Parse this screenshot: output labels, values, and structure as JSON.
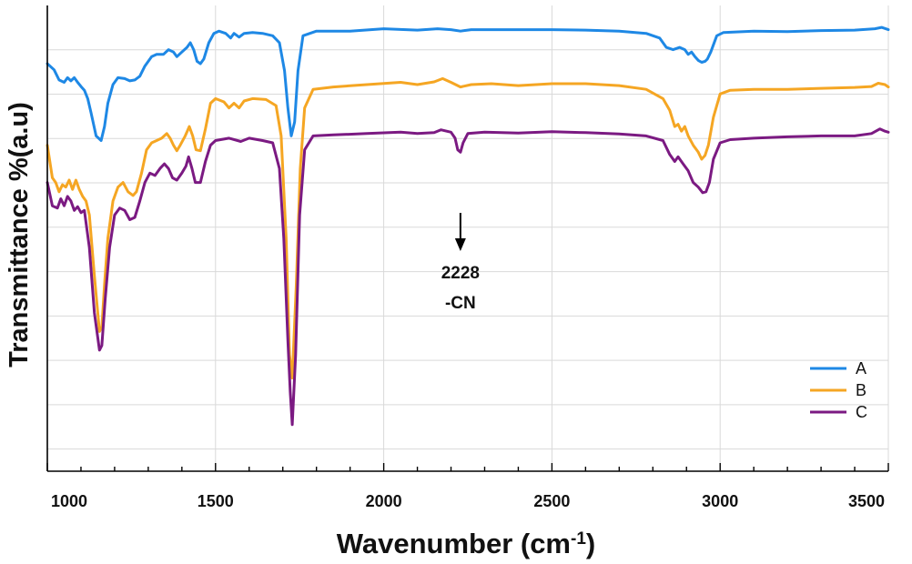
{
  "chart_data": {
    "type": "line",
    "xlabel": "Wavenumber (cm",
    "xlabel_sup": "-1",
    "xlabel_end": ")",
    "ylabel": "Transmittance %(a.u)",
    "xlim": [
      1000,
      3500
    ],
    "x_ticks": [
      "1000",
      "1500",
      "2000",
      "2500",
      "3000",
      "3500"
    ],
    "grid": true,
    "legend_position": "bottom-right",
    "annotation": {
      "x": 2228,
      "line1": "2228",
      "line2": "-CN"
    },
    "series": [
      {
        "name": "A",
        "color": "#1E88E5",
        "points": [
          [
            1000,
            0.875
          ],
          [
            1020,
            0.862
          ],
          [
            1035,
            0.84
          ],
          [
            1050,
            0.835
          ],
          [
            1060,
            0.845
          ],
          [
            1070,
            0.838
          ],
          [
            1080,
            0.845
          ],
          [
            1090,
            0.835
          ],
          [
            1100,
            0.826
          ],
          [
            1110,
            0.818
          ],
          [
            1120,
            0.8
          ],
          [
            1130,
            0.77
          ],
          [
            1145,
            0.72
          ],
          [
            1160,
            0.71
          ],
          [
            1170,
            0.74
          ],
          [
            1180,
            0.79
          ],
          [
            1195,
            0.83
          ],
          [
            1210,
            0.845
          ],
          [
            1230,
            0.843
          ],
          [
            1245,
            0.838
          ],
          [
            1260,
            0.84
          ],
          [
            1275,
            0.848
          ],
          [
            1290,
            0.87
          ],
          [
            1310,
            0.89
          ],
          [
            1325,
            0.895
          ],
          [
            1345,
            0.895
          ],
          [
            1360,
            0.905
          ],
          [
            1375,
            0.9
          ],
          [
            1385,
            0.89
          ],
          [
            1400,
            0.9
          ],
          [
            1415,
            0.91
          ],
          [
            1425,
            0.92
          ],
          [
            1435,
            0.905
          ],
          [
            1445,
            0.88
          ],
          [
            1455,
            0.875
          ],
          [
            1465,
            0.885
          ],
          [
            1480,
            0.92
          ],
          [
            1495,
            0.94
          ],
          [
            1510,
            0.945
          ],
          [
            1530,
            0.94
          ],
          [
            1545,
            0.93
          ],
          [
            1555,
            0.94
          ],
          [
            1570,
            0.932
          ],
          [
            1585,
            0.94
          ],
          [
            1610,
            0.942
          ],
          [
            1640,
            0.94
          ],
          [
            1670,
            0.935
          ],
          [
            1690,
            0.92
          ],
          [
            1705,
            0.86
          ],
          [
            1715,
            0.78
          ],
          [
            1725,
            0.72
          ],
          [
            1735,
            0.75
          ],
          [
            1745,
            0.86
          ],
          [
            1760,
            0.935
          ],
          [
            1800,
            0.945
          ],
          [
            1900,
            0.945
          ],
          [
            2000,
            0.95
          ],
          [
            2100,
            0.947
          ],
          [
            2160,
            0.95
          ],
          [
            2200,
            0.948
          ],
          [
            2228,
            0.945
          ],
          [
            2260,
            0.948
          ],
          [
            2400,
            0.948
          ],
          [
            2500,
            0.948
          ],
          [
            2600,
            0.947
          ],
          [
            2700,
            0.945
          ],
          [
            2780,
            0.94
          ],
          [
            2820,
            0.93
          ],
          [
            2840,
            0.91
          ],
          [
            2860,
            0.905
          ],
          [
            2880,
            0.91
          ],
          [
            2895,
            0.905
          ],
          [
            2905,
            0.895
          ],
          [
            2915,
            0.9
          ],
          [
            2925,
            0.89
          ],
          [
            2935,
            0.882
          ],
          [
            2945,
            0.878
          ],
          [
            2955,
            0.88
          ],
          [
            2962,
            0.885
          ],
          [
            2972,
            0.9
          ],
          [
            2990,
            0.935
          ],
          [
            3010,
            0.942
          ],
          [
            3100,
            0.945
          ],
          [
            3200,
            0.944
          ],
          [
            3300,
            0.946
          ],
          [
            3400,
            0.947
          ],
          [
            3460,
            0.95
          ],
          [
            3480,
            0.953
          ],
          [
            3500,
            0.948
          ]
        ]
      },
      {
        "name": "B",
        "color": "#F5A623",
        "points": [
          [
            1000,
            0.7
          ],
          [
            1015,
            0.63
          ],
          [
            1025,
            0.62
          ],
          [
            1035,
            0.6
          ],
          [
            1045,
            0.615
          ],
          [
            1055,
            0.61
          ],
          [
            1065,
            0.625
          ],
          [
            1075,
            0.605
          ],
          [
            1085,
            0.625
          ],
          [
            1095,
            0.605
          ],
          [
            1105,
            0.59
          ],
          [
            1115,
            0.58
          ],
          [
            1125,
            0.55
          ],
          [
            1140,
            0.42
          ],
          [
            1155,
            0.3
          ],
          [
            1162,
            0.31
          ],
          [
            1170,
            0.4
          ],
          [
            1180,
            0.5
          ],
          [
            1195,
            0.58
          ],
          [
            1210,
            0.61
          ],
          [
            1225,
            0.62
          ],
          [
            1240,
            0.6
          ],
          [
            1255,
            0.592
          ],
          [
            1265,
            0.6
          ],
          [
            1280,
            0.64
          ],
          [
            1295,
            0.69
          ],
          [
            1310,
            0.705
          ],
          [
            1325,
            0.71
          ],
          [
            1340,
            0.715
          ],
          [
            1355,
            0.725
          ],
          [
            1365,
            0.715
          ],
          [
            1375,
            0.7
          ],
          [
            1385,
            0.688
          ],
          [
            1395,
            0.7
          ],
          [
            1410,
            0.72
          ],
          [
            1422,
            0.74
          ],
          [
            1432,
            0.72
          ],
          [
            1442,
            0.69
          ],
          [
            1455,
            0.688
          ],
          [
            1470,
            0.735
          ],
          [
            1485,
            0.79
          ],
          [
            1500,
            0.8
          ],
          [
            1525,
            0.793
          ],
          [
            1540,
            0.78
          ],
          [
            1555,
            0.79
          ],
          [
            1570,
            0.78
          ],
          [
            1585,
            0.795
          ],
          [
            1610,
            0.8
          ],
          [
            1650,
            0.798
          ],
          [
            1680,
            0.785
          ],
          [
            1695,
            0.72
          ],
          [
            1710,
            0.5
          ],
          [
            1720,
            0.25
          ],
          [
            1728,
            0.2
          ],
          [
            1740,
            0.4
          ],
          [
            1752,
            0.65
          ],
          [
            1765,
            0.78
          ],
          [
            1790,
            0.82
          ],
          [
            1850,
            0.825
          ],
          [
            1950,
            0.83
          ],
          [
            2050,
            0.835
          ],
          [
            2100,
            0.83
          ],
          [
            2150,
            0.836
          ],
          [
            2175,
            0.843
          ],
          [
            2200,
            0.835
          ],
          [
            2228,
            0.825
          ],
          [
            2260,
            0.83
          ],
          [
            2320,
            0.832
          ],
          [
            2400,
            0.828
          ],
          [
            2500,
            0.832
          ],
          [
            2600,
            0.832
          ],
          [
            2700,
            0.828
          ],
          [
            2780,
            0.82
          ],
          [
            2830,
            0.8
          ],
          [
            2850,
            0.775
          ],
          [
            2865,
            0.74
          ],
          [
            2875,
            0.745
          ],
          [
            2885,
            0.73
          ],
          [
            2895,
            0.74
          ],
          [
            2905,
            0.72
          ],
          [
            2920,
            0.7
          ],
          [
            2935,
            0.685
          ],
          [
            2945,
            0.67
          ],
          [
            2955,
            0.678
          ],
          [
            2965,
            0.7
          ],
          [
            2980,
            0.76
          ],
          [
            3000,
            0.81
          ],
          [
            3030,
            0.818
          ],
          [
            3100,
            0.82
          ],
          [
            3200,
            0.82
          ],
          [
            3300,
            0.822
          ],
          [
            3400,
            0.824
          ],
          [
            3450,
            0.826
          ],
          [
            3470,
            0.833
          ],
          [
            3490,
            0.83
          ],
          [
            3500,
            0.825
          ]
        ]
      },
      {
        "name": "C",
        "color": "#7B1A82",
        "points": [
          [
            1000,
            0.62
          ],
          [
            1015,
            0.57
          ],
          [
            1030,
            0.565
          ],
          [
            1040,
            0.585
          ],
          [
            1050,
            0.57
          ],
          [
            1060,
            0.59
          ],
          [
            1070,
            0.58
          ],
          [
            1080,
            0.56
          ],
          [
            1090,
            0.568
          ],
          [
            1100,
            0.555
          ],
          [
            1110,
            0.56
          ],
          [
            1125,
            0.48
          ],
          [
            1140,
            0.34
          ],
          [
            1155,
            0.26
          ],
          [
            1162,
            0.27
          ],
          [
            1172,
            0.37
          ],
          [
            1185,
            0.48
          ],
          [
            1200,
            0.55
          ],
          [
            1215,
            0.565
          ],
          [
            1230,
            0.56
          ],
          [
            1245,
            0.54
          ],
          [
            1260,
            0.545
          ],
          [
            1275,
            0.58
          ],
          [
            1290,
            0.62
          ],
          [
            1305,
            0.64
          ],
          [
            1320,
            0.635
          ],
          [
            1335,
            0.65
          ],
          [
            1348,
            0.66
          ],
          [
            1360,
            0.65
          ],
          [
            1372,
            0.63
          ],
          [
            1385,
            0.625
          ],
          [
            1400,
            0.64
          ],
          [
            1412,
            0.655
          ],
          [
            1420,
            0.675
          ],
          [
            1430,
            0.65
          ],
          [
            1440,
            0.62
          ],
          [
            1455,
            0.62
          ],
          [
            1470,
            0.665
          ],
          [
            1485,
            0.7
          ],
          [
            1500,
            0.71
          ],
          [
            1540,
            0.715
          ],
          [
            1575,
            0.708
          ],
          [
            1600,
            0.715
          ],
          [
            1640,
            0.71
          ],
          [
            1670,
            0.705
          ],
          [
            1690,
            0.65
          ],
          [
            1703,
            0.5
          ],
          [
            1715,
            0.28
          ],
          [
            1722,
            0.17
          ],
          [
            1728,
            0.1
          ],
          [
            1738,
            0.25
          ],
          [
            1750,
            0.55
          ],
          [
            1765,
            0.69
          ],
          [
            1790,
            0.72
          ],
          [
            1850,
            0.722
          ],
          [
            1950,
            0.725
          ],
          [
            2050,
            0.728
          ],
          [
            2100,
            0.725
          ],
          [
            2150,
            0.727
          ],
          [
            2170,
            0.733
          ],
          [
            2200,
            0.728
          ],
          [
            2212,
            0.715
          ],
          [
            2220,
            0.69
          ],
          [
            2228,
            0.685
          ],
          [
            2236,
            0.705
          ],
          [
            2250,
            0.725
          ],
          [
            2300,
            0.728
          ],
          [
            2400,
            0.726
          ],
          [
            2500,
            0.729
          ],
          [
            2600,
            0.727
          ],
          [
            2700,
            0.724
          ],
          [
            2780,
            0.72
          ],
          [
            2830,
            0.71
          ],
          [
            2850,
            0.68
          ],
          [
            2865,
            0.665
          ],
          [
            2875,
            0.675
          ],
          [
            2890,
            0.66
          ],
          [
            2905,
            0.645
          ],
          [
            2920,
            0.62
          ],
          [
            2935,
            0.61
          ],
          [
            2948,
            0.598
          ],
          [
            2958,
            0.6
          ],
          [
            2968,
            0.62
          ],
          [
            2980,
            0.67
          ],
          [
            3000,
            0.705
          ],
          [
            3030,
            0.712
          ],
          [
            3100,
            0.715
          ],
          [
            3200,
            0.718
          ],
          [
            3300,
            0.72
          ],
          [
            3400,
            0.72
          ],
          [
            3450,
            0.725
          ],
          [
            3475,
            0.735
          ],
          [
            3490,
            0.73
          ],
          [
            3500,
            0.728
          ]
        ]
      }
    ]
  }
}
